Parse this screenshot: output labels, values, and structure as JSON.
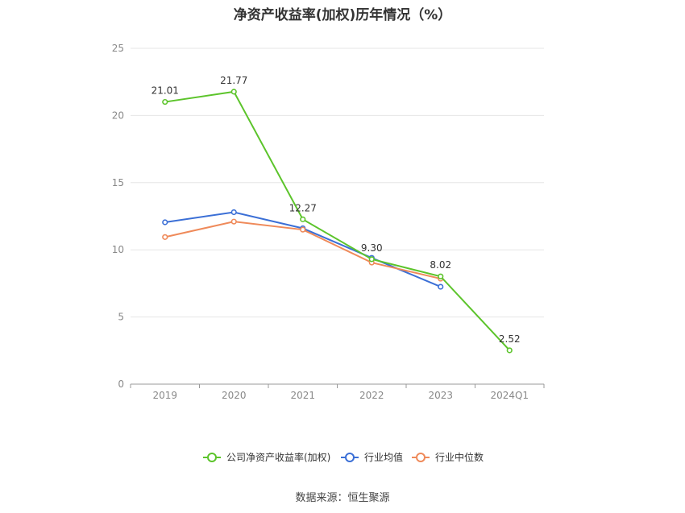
{
  "chart_data": {
    "type": "line",
    "title": "净资产收益率(加权)历年情况（%）",
    "categories": [
      "2019",
      "2020",
      "2021",
      "2022",
      "2023",
      "2024Q1"
    ],
    "ylim": [
      0,
      25
    ],
    "yticks": [
      0,
      5,
      10,
      15,
      20,
      25
    ],
    "grid": true,
    "legend_position": "bottom",
    "series": [
      {
        "name": "公司净资产收益率(加权)",
        "color": "#5cc42b",
        "values": [
          21.01,
          21.77,
          12.27,
          9.3,
          8.02,
          2.52
        ],
        "labels": [
          "21.01",
          "21.77",
          "12.27",
          "9.30",
          "8.02",
          "2.52"
        ]
      },
      {
        "name": "行业均值",
        "color": "#3b6fd6",
        "values": [
          12.05,
          12.8,
          11.6,
          9.4,
          7.25,
          null
        ]
      },
      {
        "name": "行业中位数",
        "color": "#ef8a5a",
        "values": [
          10.95,
          12.1,
          11.5,
          9.05,
          7.85,
          null
        ]
      }
    ]
  },
  "footer": {
    "source": "数据来源：恒生聚源"
  }
}
